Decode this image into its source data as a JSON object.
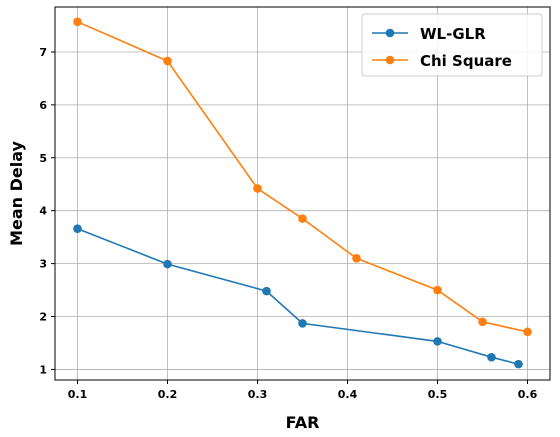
{
  "chart_data": {
    "type": "line",
    "title": "",
    "xlabel": "FAR",
    "ylabel": "Mean Delay",
    "xlim": [
      0.075,
      0.625
    ],
    "ylim": [
      0.8,
      7.85
    ],
    "xticks": [
      0.1,
      0.2,
      0.3,
      0.4,
      0.5,
      0.6
    ],
    "xtick_labels": [
      "0.1",
      "0.2",
      "0.3",
      "0.4",
      "0.5",
      "0.6"
    ],
    "yticks": [
      1,
      2,
      3,
      4,
      5,
      6,
      7
    ],
    "ytick_labels": [
      "1",
      "2",
      "3",
      "4",
      "5",
      "6",
      "7"
    ],
    "grid": true,
    "legend_position": "top-right",
    "series": [
      {
        "name": "WL-GLR",
        "color": "#1f77b4",
        "marker": "circle",
        "x": [
          0.1,
          0.2,
          0.31,
          0.35,
          0.5,
          0.56,
          0.59
        ],
        "y": [
          3.66,
          2.99,
          2.48,
          1.87,
          1.53,
          1.23,
          1.1
        ]
      },
      {
        "name": "Chi Square",
        "color": "#ff7f0e",
        "marker": "circle",
        "x": [
          0.1,
          0.2,
          0.3,
          0.35,
          0.41,
          0.5,
          0.55,
          0.6
        ],
        "y": [
          7.57,
          6.83,
          4.42,
          3.85,
          3.1,
          2.5,
          1.9,
          1.71
        ]
      }
    ]
  }
}
